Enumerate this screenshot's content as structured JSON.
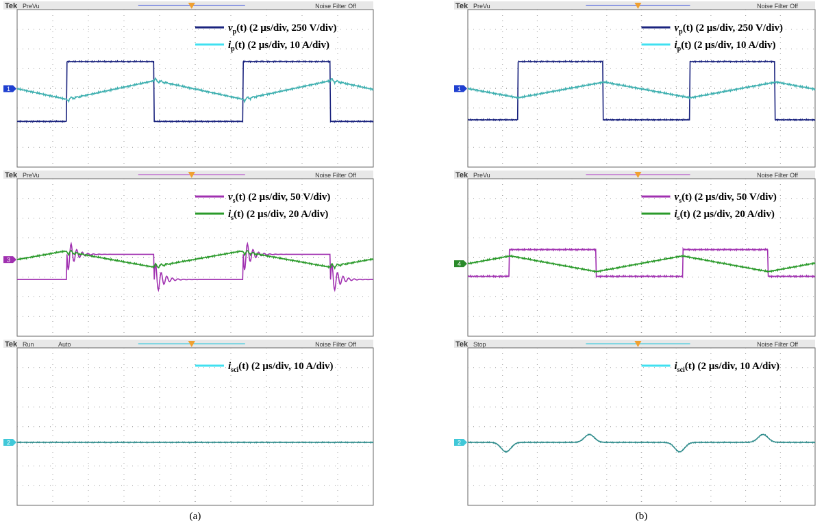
{
  "panels": [
    {
      "caption": "(a)",
      "screens": [
        {
          "brand": "Tek",
          "status": "PreVu",
          "filter": "Noise Filter Off",
          "channel": "1",
          "legend": [
            {
              "symbol": "v",
              "subscript": "p",
              "text": "(t) (2 µs/div, 250 V/div)"
            },
            {
              "symbol": "i",
              "subscript": "p",
              "text": "(t) (2 µs/div, 10 A/div)"
            }
          ]
        },
        {
          "brand": "Tek",
          "status": "PreVu",
          "filter": "Noise Filter Off",
          "channel": "3",
          "legend": [
            {
              "symbol": "v",
              "subscript": "s",
              "text": "(t) (2 µs/div, 50 V/div)"
            },
            {
              "symbol": "i",
              "subscript": "s",
              "text": "(t) (2 µs/div, 20 A/div)"
            }
          ]
        },
        {
          "brand": "Tek",
          "status": "Run",
          "mode": "Auto",
          "filter": "Noise Filter Off",
          "channel": "2",
          "legend": [
            {
              "symbol": "i",
              "subscript": "sci",
              "text": "(t) (2 µs/div, 10 A/div)"
            }
          ]
        }
      ]
    },
    {
      "caption": "(b)",
      "screens": [
        {
          "brand": "Tek",
          "status": "PreVu",
          "filter": "Noise Filter Off",
          "channel": "1",
          "legend": [
            {
              "symbol": "v",
              "subscript": "p",
              "text": "(t) (2 µs/div, 250 V/div)"
            },
            {
              "symbol": "i",
              "subscript": "p",
              "text": "(t) (2 µs/div, 10 A/div)"
            }
          ]
        },
        {
          "brand": "Tek",
          "status": "PreVu",
          "filter": "Noise Filter Off",
          "channel": "4",
          "legend": [
            {
              "symbol": "v",
              "subscript": "s",
              "text": "(t) (2 µs/div, 50 V/div)"
            },
            {
              "symbol": "i",
              "subscript": "s",
              "text": "(t) (2 µs/div, 20 A/div)"
            }
          ]
        },
        {
          "brand": "Tek",
          "status": "Stop",
          "filter": "Noise Filter Off",
          "channel": "2",
          "legend": [
            {
              "symbol": "i",
              "subscript": "sci",
              "text": "(t) (2 µs/div, 10 A/div)"
            }
          ]
        }
      ]
    }
  ]
}
